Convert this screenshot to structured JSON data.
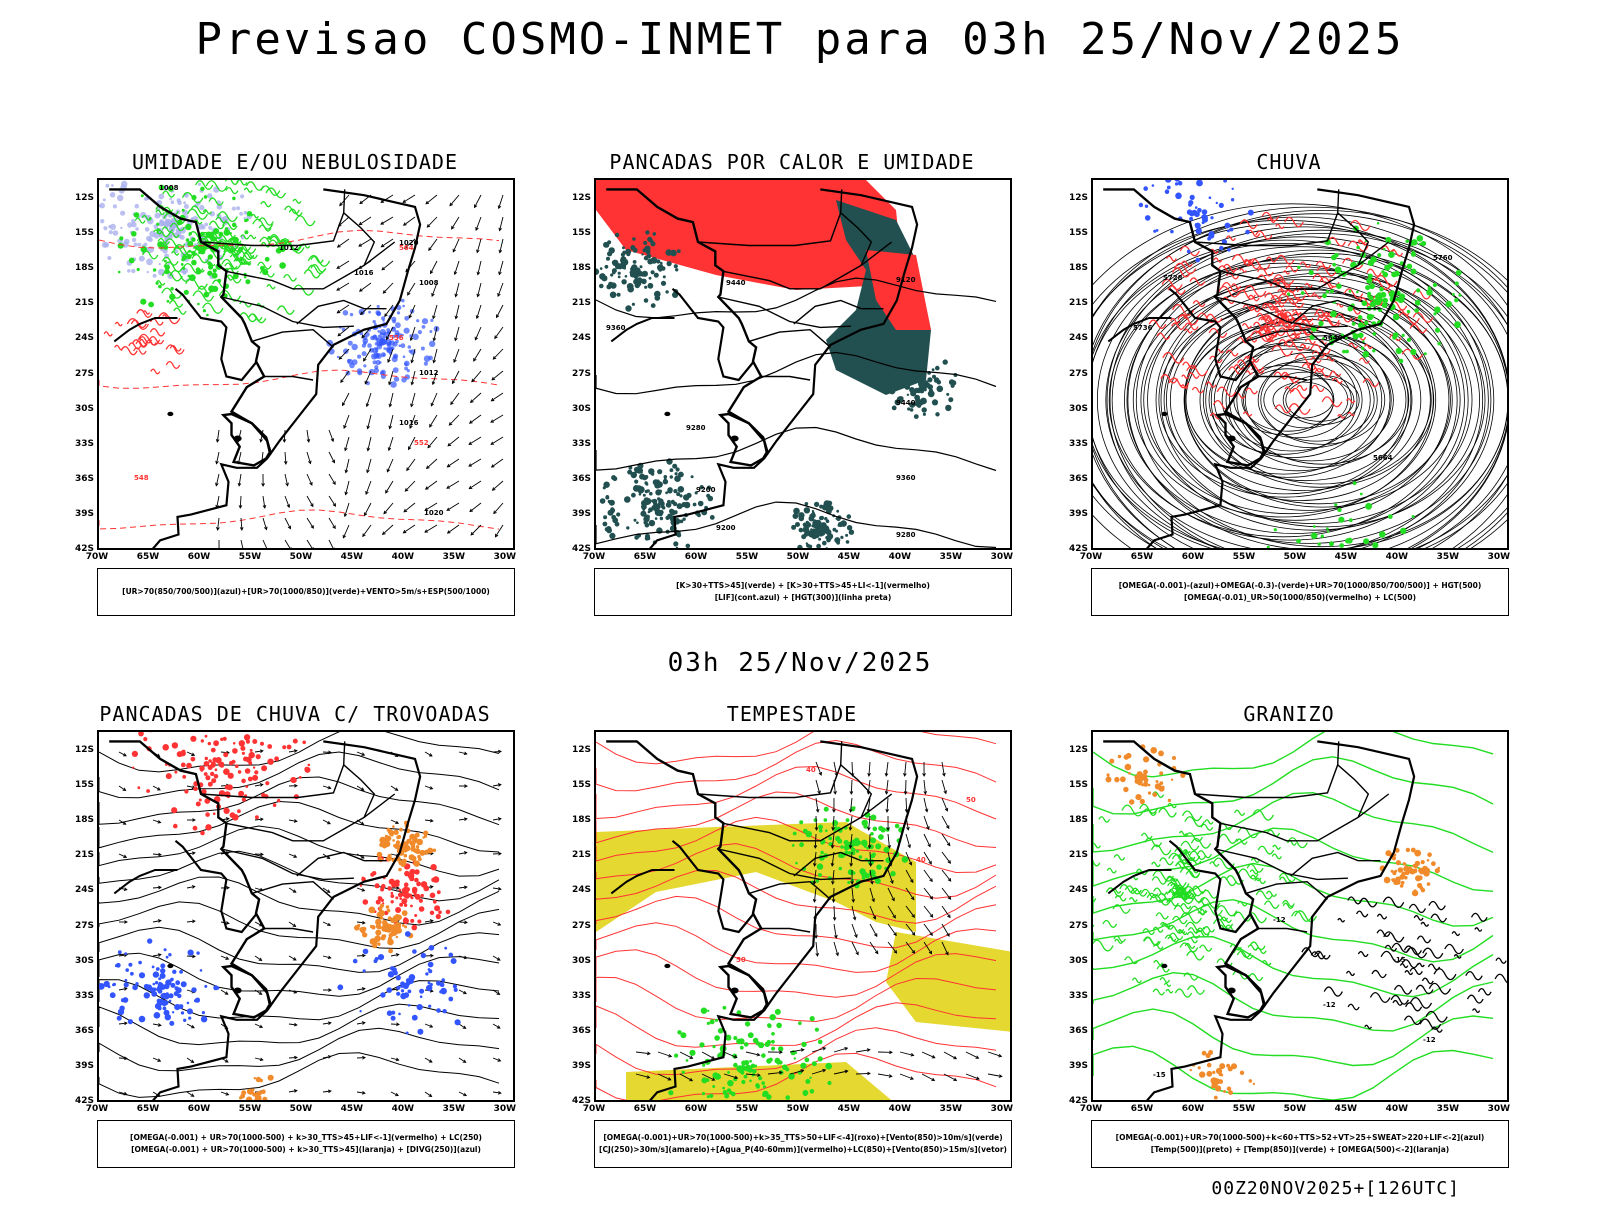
{
  "header": {
    "title": "Previsao COSMO-INMET  para 03h 25/Nov/2025",
    "middle": "03h 25/Nov/2025",
    "run": "00Z20NOV2025+[126UTC]"
  },
  "axes": {
    "lat_labels": [
      "12S",
      "15S",
      "18S",
      "21S",
      "24S",
      "27S",
      "30S",
      "33S",
      "36S",
      "39S",
      "42S"
    ],
    "lon_labels": [
      "70W",
      "65W",
      "60W",
      "55W",
      "50W",
      "45W",
      "40W",
      "35W",
      "30W"
    ]
  },
  "colors": {
    "blue": "#3355ff",
    "lightblue": "#aab0ee",
    "green": "#22dd22",
    "red": "#ff3333",
    "darkteal": "#224f4f",
    "yellow": "#e5d830",
    "orange": "#f08a2a",
    "black": "#000000"
  },
  "panels": [
    {
      "title": "UMIDADE E/OU NEBULOSIDADE",
      "legend": [
        "[UR>70(850/700/500)](azul)+[UR>70(1000/850)](verde)+VENTO>5m/s+ESP(500/1000)"
      ],
      "contour_labels": [
        "1008",
        "1012",
        "1016",
        "1020",
        "564",
        "556",
        "552",
        "548"
      ]
    },
    {
      "title": "PANCADAS POR CALOR E UMIDADE",
      "legend": [
        "[K>30+TTS>45](verde)  +  [K>30+TTS>45+LI<-1](vermelho)",
        "[LIF](cont.azul)  +  [HGT(300)](linha preta)"
      ],
      "contour_labels": [
        "9440",
        "9360",
        "9280",
        "9200",
        "9120"
      ]
    },
    {
      "title": "CHUVA",
      "legend": [
        "[OMEGA(-0.001)-(azul)+OMEGA(-0.3)-(verde)+UR>70(1000/850/700/500)]  +  HGT(500)",
        "[OMEGA(-0.01)_UR>50(1000/850)(vermelho)  +  LC(500)"
      ],
      "contour_labels": [
        "5736",
        "5728",
        "5640",
        "5664",
        "5760"
      ]
    },
    {
      "title": "PANCADAS DE CHUVA C/ TROVOADAS",
      "legend": [
        "[OMEGA(-0.001)  +  UR>70(1000-500)  +  k>30_TTS>45+LIF<-1](vermelho)  +  LC(250)",
        "[OMEGA(-0.001)  +  UR>70(1000-500)  +  k>30_TTS>45](laranja)  +  [DIVG(250)](azul)"
      ],
      "contour_labels": []
    },
    {
      "title": "TEMPESTADE",
      "legend": [
        "[OMEGA(-0.001)+UR>70(1000-500)+k>35_TTS>50+LIF<-4](roxo)+[Vento(850)>10m/s](verde)",
        "[CJ(250)>30m/s](amarelo)+[Agua_P(40-60mm)](vermelho)+LC(850)+[Vento(850)>15m/s](vetor)"
      ],
      "contour_labels": [
        "40",
        "50"
      ]
    },
    {
      "title": "GRANIZO",
      "legend": [
        "[OMEGA(-0.001)+UR>70(1000-500)+k<60+TTS>52+VT>25+SWEAT>220+LIF<-2](azul)",
        "[Temp(500)](preto)  +  [Temp(850)](verde)  +  [OMEGA(500)<-2](laranja)"
      ],
      "contour_labels": [
        "-12",
        "-15",
        "-12"
      ]
    }
  ]
}
